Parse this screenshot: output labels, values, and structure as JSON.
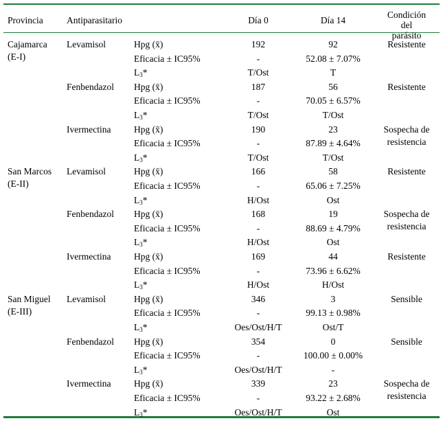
{
  "header": {
    "provincia": "Provincia",
    "antiparasitario": "Antiparasitario",
    "dia0": "Día 0",
    "dia14": "Día 14",
    "condicion_line1": "Condición del",
    "condicion_line2": "parásito"
  },
  "labels": {
    "hpg": "Hpg (x̄)",
    "eficacia": "Eficacia ± IC95%",
    "l3_prefix": "L",
    "l3_sub": "3",
    "l3_suffix": "*"
  },
  "provinces": [
    {
      "name_line1": "Cajamarca",
      "name_line2": "(E-I)",
      "drugs": [
        {
          "name": "Levamisol",
          "hpg0": "192",
          "hpg14": "92",
          "ef0": "-",
          "ef14": "52.08 ± 7.07%",
          "l30": "T/Ost",
          "l314": "T",
          "cond1": "Resistente",
          "cond2": ""
        },
        {
          "name": "Fenbendazol",
          "hpg0": "187",
          "hpg14": "56",
          "ef0": "-",
          "ef14": "70.05 ± 6.57%",
          "l30": "T/Ost",
          "l314": "T/Ost",
          "cond1": "Resistente",
          "cond2": ""
        },
        {
          "name": "Ivermectina",
          "hpg0": "190",
          "hpg14": "23",
          "ef0": "-",
          "ef14": "87.89 ± 4.64%",
          "l30": "T/Ost",
          "l314": "T/Ost",
          "cond1": "Sospecha de",
          "cond2": "resistencia"
        }
      ]
    },
    {
      "name_line1": "San Marcos",
      "name_line2": "(E-II)",
      "drugs": [
        {
          "name": "Levamisol",
          "hpg0": "166",
          "hpg14": "58",
          "ef0": "-",
          "ef14": "65.06 ± 7.25%",
          "l30": "H/Ost",
          "l314": "Ost",
          "cond1": "Resistente",
          "cond2": ""
        },
        {
          "name": "Fenbendazol",
          "hpg0": "168",
          "hpg14": "19",
          "ef0": "-",
          "ef14": "88.69 ± 4.79%",
          "l30": "H/Ost",
          "l314": "Ost",
          "cond1": "Sospecha de",
          "cond2": "resistencia"
        },
        {
          "name": "Ivermectina",
          "hpg0": "169",
          "hpg14": "44",
          "ef0": "-",
          "ef14": "73.96 ± 6.62%",
          "l30": "H/Ost",
          "l314": "H/Ost",
          "cond1": "Resistente",
          "cond2": ""
        }
      ]
    },
    {
      "name_line1": "San Miguel",
      "name_line2": "(E-III)",
      "drugs": [
        {
          "name": "Levamisol",
          "hpg0": "346",
          "hpg14": "3",
          "ef0": "-",
          "ef14": "99.13 ± 0.98%",
          "l30": "Oes/Ost/H/T",
          "l314": "Ost/T",
          "cond1": "Sensible",
          "cond2": ""
        },
        {
          "name": "Fenbendazol",
          "hpg0": "354",
          "hpg14": "0",
          "ef0": "-",
          "ef14": "100.00 ± 0.00%",
          "l30": "Oes/Ost/H/T",
          "l314": "-",
          "cond1": "Sensible",
          "cond2": ""
        },
        {
          "name": "Ivermectina",
          "hpg0": "339",
          "hpg14": "23",
          "ef0": "-",
          "ef14": "93.22 ± 2.68%",
          "l30": "Oes/Ost/H/T",
          "l314": "Ost",
          "cond1": "Sospecha de",
          "cond2": "resistencia"
        }
      ]
    }
  ]
}
